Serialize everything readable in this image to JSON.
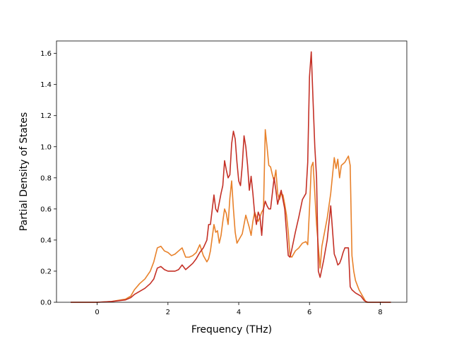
{
  "chart_data": {
    "type": "line",
    "title": "",
    "xlabel": "Frequency (THz)",
    "ylabel": "Partial Density of States",
    "xlim": [
      -1.15,
      8.75
    ],
    "ylim": [
      0.0,
      1.68
    ],
    "xticks": [
      0,
      2,
      4,
      6,
      8
    ],
    "yticks": [
      0.0,
      0.2,
      0.4,
      0.6,
      0.8,
      1.0,
      1.2,
      1.4,
      1.6
    ],
    "tick_labels_x": [
      "0",
      "2",
      "4",
      "6",
      "8"
    ],
    "tick_labels_y": [
      "0.0",
      "0.2",
      "0.4",
      "0.6",
      "0.8",
      "1.0",
      "1.2",
      "1.4",
      "1.6"
    ],
    "grid": false,
    "legend": "none",
    "series": [
      {
        "color": "#e8812a",
        "x": [
          -0.75,
          0.0,
          0.4,
          0.8,
          0.95,
          1.05,
          1.2,
          1.35,
          1.5,
          1.6,
          1.7,
          1.8,
          1.9,
          2.0,
          2.1,
          2.2,
          2.3,
          2.4,
          2.5,
          2.6,
          2.7,
          2.8,
          2.9,
          3.0,
          3.1,
          3.15,
          3.2,
          3.3,
          3.35,
          3.4,
          3.45,
          3.5,
          3.55,
          3.6,
          3.65,
          3.7,
          3.75,
          3.8,
          3.85,
          3.9,
          3.95,
          4.0,
          4.1,
          4.2,
          4.3,
          4.35,
          4.4,
          4.45,
          4.5,
          4.55,
          4.6,
          4.65,
          4.7,
          4.75,
          4.8,
          4.85,
          4.9,
          4.95,
          5.0,
          5.05,
          5.1,
          5.15,
          5.2,
          5.25,
          5.3,
          5.35,
          5.4,
          5.45,
          5.5,
          5.6,
          5.7,
          5.8,
          5.9,
          5.95,
          6.0,
          6.05,
          6.1,
          6.15,
          6.2,
          6.3,
          6.35,
          6.4,
          6.5,
          6.6,
          6.7,
          6.75,
          6.8,
          6.85,
          6.9,
          6.95,
          7.0,
          7.1,
          7.15,
          7.2,
          7.25,
          7.3,
          7.4,
          7.5,
          7.6,
          7.65,
          7.8,
          8.3
        ],
        "y": [
          0.0,
          0.0,
          0.005,
          0.02,
          0.04,
          0.08,
          0.12,
          0.15,
          0.2,
          0.26,
          0.35,
          0.36,
          0.33,
          0.32,
          0.3,
          0.31,
          0.33,
          0.35,
          0.29,
          0.29,
          0.3,
          0.32,
          0.37,
          0.3,
          0.26,
          0.28,
          0.33,
          0.5,
          0.45,
          0.46,
          0.38,
          0.43,
          0.52,
          0.6,
          0.57,
          0.5,
          0.67,
          0.78,
          0.6,
          0.45,
          0.38,
          0.4,
          0.44,
          0.56,
          0.48,
          0.43,
          0.52,
          0.58,
          0.55,
          0.52,
          0.55,
          0.58,
          0.6,
          1.11,
          1.0,
          0.88,
          0.87,
          0.82,
          0.78,
          0.85,
          0.7,
          0.66,
          0.7,
          0.69,
          0.63,
          0.56,
          0.45,
          0.3,
          0.29,
          0.33,
          0.35,
          0.38,
          0.39,
          0.37,
          0.6,
          0.87,
          0.9,
          0.7,
          0.5,
          0.22,
          0.36,
          0.42,
          0.54,
          0.7,
          0.93,
          0.86,
          0.92,
          0.8,
          0.88,
          0.89,
          0.9,
          0.94,
          0.88,
          0.3,
          0.2,
          0.14,
          0.08,
          0.04,
          0.0,
          0.0,
          0.0,
          0.0
        ]
      },
      {
        "color": "#c43026",
        "x": [
          -0.75,
          0.0,
          0.4,
          0.8,
          0.95,
          1.05,
          1.2,
          1.35,
          1.5,
          1.6,
          1.7,
          1.8,
          1.9,
          2.0,
          2.1,
          2.2,
          2.3,
          2.4,
          2.5,
          2.6,
          2.7,
          2.8,
          2.9,
          3.0,
          3.1,
          3.15,
          3.2,
          3.3,
          3.35,
          3.4,
          3.5,
          3.55,
          3.6,
          3.65,
          3.7,
          3.75,
          3.8,
          3.85,
          3.9,
          3.95,
          4.0,
          4.05,
          4.1,
          4.15,
          4.2,
          4.25,
          4.3,
          4.35,
          4.4,
          4.45,
          4.5,
          4.55,
          4.6,
          4.65,
          4.7,
          4.75,
          4.8,
          4.85,
          4.9,
          4.95,
          5.0,
          5.05,
          5.1,
          5.15,
          5.2,
          5.3,
          5.4,
          5.45,
          5.5,
          5.6,
          5.7,
          5.8,
          5.9,
          5.95,
          6.0,
          6.05,
          6.1,
          6.15,
          6.2,
          6.25,
          6.3,
          6.4,
          6.5,
          6.6,
          6.7,
          6.75,
          6.8,
          6.85,
          6.9,
          6.95,
          7.0,
          7.1,
          7.15,
          7.2,
          7.3,
          7.45,
          7.55,
          7.65,
          7.8,
          8.3
        ],
        "y": [
          0.0,
          0.0,
          0.005,
          0.015,
          0.03,
          0.05,
          0.07,
          0.09,
          0.12,
          0.15,
          0.22,
          0.23,
          0.21,
          0.2,
          0.2,
          0.2,
          0.21,
          0.24,
          0.21,
          0.23,
          0.25,
          0.28,
          0.32,
          0.35,
          0.4,
          0.5,
          0.5,
          0.69,
          0.6,
          0.58,
          0.7,
          0.75,
          0.91,
          0.85,
          0.8,
          0.82,
          1.02,
          1.1,
          1.05,
          0.9,
          0.78,
          0.75,
          0.88,
          1.07,
          1.0,
          0.88,
          0.72,
          0.81,
          0.7,
          0.57,
          0.5,
          0.58,
          0.55,
          0.43,
          0.6,
          0.65,
          0.62,
          0.6,
          0.6,
          0.7,
          0.8,
          0.72,
          0.63,
          0.68,
          0.72,
          0.6,
          0.3,
          0.29,
          0.34,
          0.45,
          0.55,
          0.66,
          0.7,
          0.9,
          1.45,
          1.61,
          1.3,
          1.0,
          0.8,
          0.2,
          0.16,
          0.27,
          0.4,
          0.62,
          0.31,
          0.28,
          0.24,
          0.25,
          0.28,
          0.32,
          0.35,
          0.35,
          0.1,
          0.08,
          0.06,
          0.04,
          0.01,
          0.0,
          0.0,
          0.0
        ]
      }
    ]
  }
}
